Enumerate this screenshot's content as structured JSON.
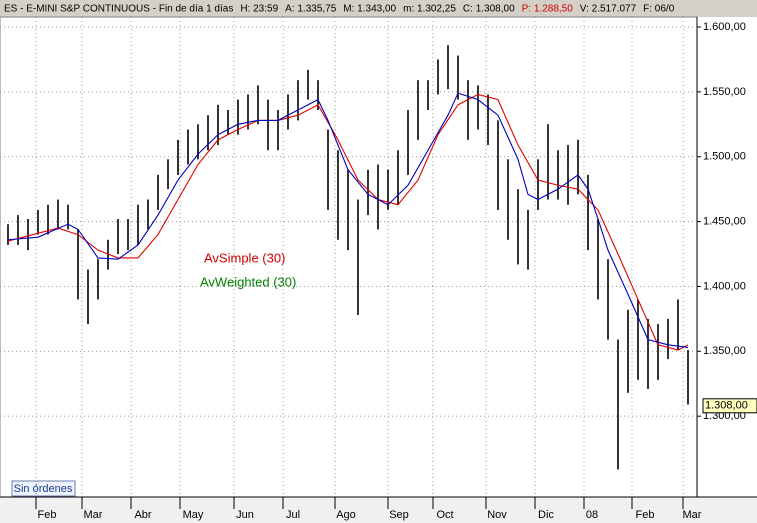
{
  "chart_data": {
    "type": "ohlc",
    "header": [
      {
        "text": "ES - E-MINI S&P CONTINUOUS - Fin de día 1 días",
        "color": "#000000"
      },
      {
        "text": "H: 23:59",
        "color": "#000000"
      },
      {
        "text": "A: 1.335,75",
        "color": "#000000"
      },
      {
        "text": "M: 1.343,00",
        "color": "#000000"
      },
      {
        "text": "m: 1.302,25",
        "color": "#000000"
      },
      {
        "text": "C: 1.308,00",
        "color": "#000000"
      },
      {
        "text": "P: 1.288,50",
        "color": "#d00000"
      },
      {
        "text": "V: 2.517.077",
        "color": "#000000"
      },
      {
        "text": "F: 06/0",
        "color": "#000000"
      }
    ],
    "xlim": [
      -0.8,
      68.9
    ],
    "ylim": [
      1237.7,
      1607.7
    ],
    "yticks": [
      {
        "value": 1600,
        "label": "1.600,00"
      },
      {
        "value": 1550,
        "label": "1.550,00"
      },
      {
        "value": 1500,
        "label": "1.500,00"
      },
      {
        "value": 1450,
        "label": "1.450,00"
      },
      {
        "value": 1400,
        "label": "1.400,00"
      },
      {
        "value": 1350,
        "label": "1.350,00"
      },
      {
        "value": 1300,
        "label": "1.300,00"
      }
    ],
    "xticks": [
      {
        "value": 3.9,
        "label": "Feb"
      },
      {
        "value": 8.5,
        "label": "Mar"
      },
      {
        "value": 13.5,
        "label": "Abr"
      },
      {
        "value": 18.5,
        "label": "May"
      },
      {
        "value": 23.7,
        "label": "Jun"
      },
      {
        "value": 28.5,
        "label": "Jul"
      },
      {
        "value": 33.8,
        "label": "Ago"
      },
      {
        "value": 39.1,
        "label": "Sep"
      },
      {
        "value": 43.7,
        "label": "Oct"
      },
      {
        "value": 48.9,
        "label": "Nov"
      },
      {
        "value": 53.8,
        "label": "Dic"
      },
      {
        "value": 58.4,
        "label": "08"
      },
      {
        "value": 63.7,
        "label": "Feb"
      },
      {
        "value": 68.4,
        "label": "Mar"
      }
    ],
    "xgrid": [
      2.8,
      7.4,
      12.3,
      17.2,
      22.6,
      27.5,
      32.7,
      38,
      42.5,
      47.8,
      52.7,
      57.6,
      62.4,
      67.5
    ],
    "grid": true,
    "bar_color": "#000000",
    "high": [
      1448,
      1455,
      1452,
      1459,
      1463,
      1467,
      1463,
      1444,
      1413,
      1421,
      1436,
      1452,
      1452,
      1463,
      1467,
      1486,
      1498,
      1513,
      1521,
      1525,
      1532,
      1540,
      1536,
      1544,
      1548,
      1555,
      1544,
      1536,
      1548,
      1559,
      1567,
      1559,
      1521,
      1505,
      1490,
      1467,
      1490,
      1494,
      1490,
      1505,
      1536,
      1559,
      1559,
      1575,
      1586,
      1578,
      1559,
      1555,
      1548,
      1528,
      1498,
      1475,
      1459,
      1498,
      1525,
      1505,
      1509,
      1513,
      1486,
      1452,
      1421,
      1359,
      1382,
      1390,
      1375,
      1371,
      1375,
      1390,
      1351
    ],
    "low": [
      1432,
      1432,
      1428,
      1440,
      1440,
      1444,
      1444,
      1390,
      1371,
      1390,
      1413,
      1425,
      1428,
      1432,
      1444,
      1459,
      1475,
      1486,
      1494,
      1498,
      1505,
      1509,
      1517,
      1517,
      1521,
      1525,
      1505,
      1505,
      1521,
      1528,
      1544,
      1536,
      1459,
      1436,
      1428,
      1378,
      1455,
      1444,
      1459,
      1463,
      1486,
      1513,
      1536,
      1548,
      1552,
      1544,
      1513,
      1521,
      1509,
      1459,
      1436,
      1417,
      1413,
      1459,
      1467,
      1467,
      1463,
      1471,
      1428,
      1390,
      1359,
      1259,
      1318,
      1328,
      1321,
      1328,
      1344,
      1351,
      1309
    ],
    "series": [
      {
        "name": "AvSimple (30)",
        "color": "#e00000",
        "label_color": "#d00000",
        "x": [
          0,
          5,
          7,
          9,
          11,
          13,
          15,
          17,
          19,
          21,
          23,
          25,
          27,
          29,
          31,
          33,
          35,
          37,
          39,
          41,
          43,
          45,
          47,
          49,
          51,
          53,
          55,
          57,
          59,
          61,
          63,
          65,
          67,
          68
        ],
        "values": [
          1435,
          1445,
          1440,
          1428,
          1422,
          1422,
          1440,
          1467,
          1494,
          1513,
          1521,
          1528,
          1528,
          1532,
          1540,
          1513,
          1482,
          1467,
          1463,
          1482,
          1517,
          1540,
          1548,
          1544,
          1509,
          1482,
          1478,
          1475,
          1459,
          1425,
          1390,
          1355,
          1351,
          1355
        ]
      },
      {
        "name": "AvWeighted (30)",
        "color": "#0000c0",
        "label_color": "#008000",
        "x": [
          0,
          3,
          6,
          7,
          9,
          11,
          13,
          15,
          17,
          19,
          21,
          23,
          25,
          27,
          29,
          31,
          32,
          34,
          36,
          38,
          40,
          42,
          44,
          45,
          47,
          49,
          51,
          52,
          53,
          55,
          57,
          58,
          59,
          60,
          62,
          64,
          66,
          68
        ],
        "values": [
          1436,
          1438,
          1448,
          1444,
          1422,
          1421,
          1432,
          1455,
          1482,
          1502,
          1517,
          1525,
          1528,
          1528,
          1536,
          1544,
          1528,
          1490,
          1471,
          1463,
          1478,
          1505,
          1532,
          1549,
          1544,
          1532,
          1498,
          1471,
          1467,
          1475,
          1486,
          1475,
          1452,
          1428,
          1394,
          1359,
          1355,
          1353
        ]
      }
    ],
    "last_price": {
      "value": 1308,
      "label": "1.308,00"
    },
    "button": "Sin órdenes"
  }
}
